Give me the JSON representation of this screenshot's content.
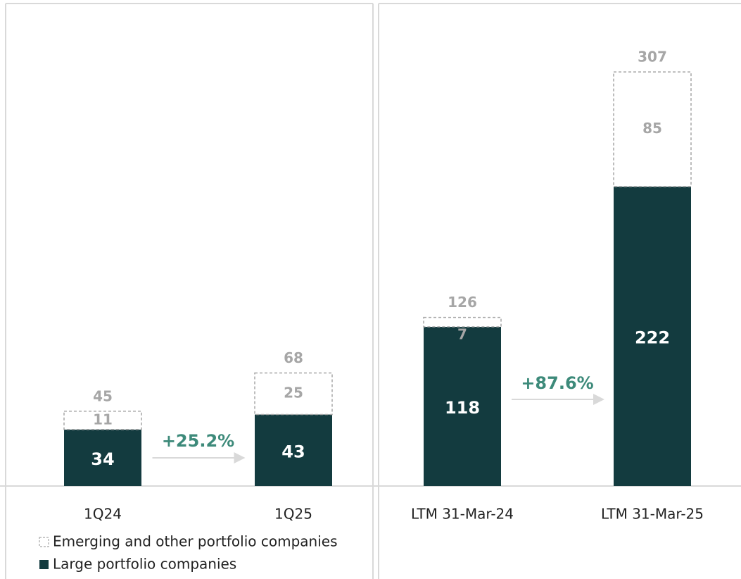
{
  "chart_data": [
    {
      "type": "bar",
      "stacked": true,
      "categories": [
        "1Q24",
        "1Q25"
      ],
      "series": [
        {
          "name": "Emerging and other portfolio companies",
          "color": "#ffffff",
          "edgecolor": "#a6a6a6",
          "values": [
            11,
            25
          ]
        },
        {
          "name": "Large portfolio companies",
          "color": "#133b3f",
          "values": [
            34,
            43
          ]
        }
      ],
      "totals": [
        45,
        68
      ],
      "annotation": "+25.2%"
    },
    {
      "type": "bar",
      "stacked": true,
      "categories": [
        "LTM 31-Mar-24",
        "LTM 31-Mar-25"
      ],
      "series": [
        {
          "color": "#ffffff",
          "edgecolor": "#a6a6a6",
          "values": [
            7,
            85
          ]
        },
        {
          "color": "#133b3f",
          "values": [
            118,
            222
          ]
        }
      ],
      "totals": [
        126,
        307
      ],
      "annotation": "+87.6%"
    }
  ]
}
